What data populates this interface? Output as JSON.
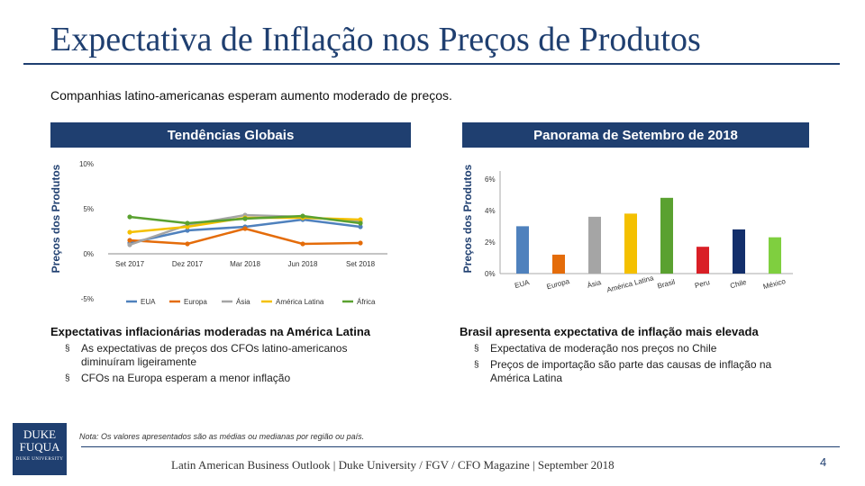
{
  "title": "Expectativa de Inflação nos Preços de Produtos",
  "subtitle": "Companhias latino-americanas esperam aumento moderado de preços.",
  "left_panel": {
    "header": "Tendências Globais",
    "heading": "Expectativas inflacionárias moderadas na América Latina",
    "bullets": [
      "As expectativas de preços dos CFOs latino-americanos diminuíram ligeiramente",
      "CFOs na Europa esperam a menor inflação"
    ]
  },
  "right_panel": {
    "header": "Panorama de Setembro de 2018",
    "heading": "Brasil apresenta expectativa de inflação mais elevada",
    "bullets": [
      "Expectativa de moderação nos preços no Chile",
      "Preços de importação são parte das causas de inflação na América Latina"
    ]
  },
  "bullet_marker": "§",
  "note": "Nota: Os valores apresentados são as médias ou medianas por região ou país.",
  "footer": "Latin American Business Outlook | Duke University / FGV / CFO Magazine | September 2018",
  "page_number": "4",
  "logo": {
    "line1": "DUKE",
    "line2": "FUQUA",
    "tagline": "DUKE UNIVERSITY"
  },
  "chart_data": [
    {
      "type": "line",
      "ylabel": "Preços dos Produtos",
      "ylim": [
        -5,
        10
      ],
      "yticks": [
        "10%",
        "5%",
        "0%",
        "-5%"
      ],
      "ytick_values": [
        10,
        5,
        0,
        -5
      ],
      "categories": [
        "Set 2017",
        "Dez 2017",
        "Mar 2018",
        "Jun 2018",
        "Set 2018"
      ],
      "series": [
        {
          "name": "EUA",
          "color": "#4f81bd",
          "values": [
            1.2,
            2.6,
            3.0,
            3.8,
            3.0
          ]
        },
        {
          "name": "Europa",
          "color": "#e46c0a",
          "values": [
            1.5,
            1.1,
            2.8,
            1.1,
            1.2
          ]
        },
        {
          "name": "Ásia",
          "color": "#a5a5a5",
          "values": [
            1.0,
            3.2,
            4.3,
            4.1,
            3.6
          ]
        },
        {
          "name": "América Latina",
          "color": "#f4c000",
          "values": [
            2.4,
            3.0,
            4.0,
            4.0,
            3.8
          ]
        },
        {
          "name": "África",
          "color": "#5aa130",
          "values": [
            4.1,
            3.4,
            3.9,
            4.2,
            3.4
          ]
        }
      ]
    },
    {
      "type": "bar",
      "ylabel": "Preços dos Produtos",
      "ylim": [
        0,
        6.5
      ],
      "yticks": [
        "6%",
        "4%",
        "2%",
        "0%"
      ],
      "ytick_values": [
        6,
        4,
        2,
        0
      ],
      "categories": [
        "EUA",
        "Europa",
        "Ásia",
        "América Latina",
        "Brasil",
        "Peru",
        "Chile",
        "México"
      ],
      "values": [
        3.0,
        1.2,
        3.6,
        3.8,
        4.8,
        1.7,
        2.8,
        2.3
      ],
      "colors": [
        "#4f81bd",
        "#e46c0a",
        "#a5a5a5",
        "#f4c000",
        "#5aa130",
        "#d91f26",
        "#132f6b",
        "#7fcf3f"
      ]
    }
  ]
}
